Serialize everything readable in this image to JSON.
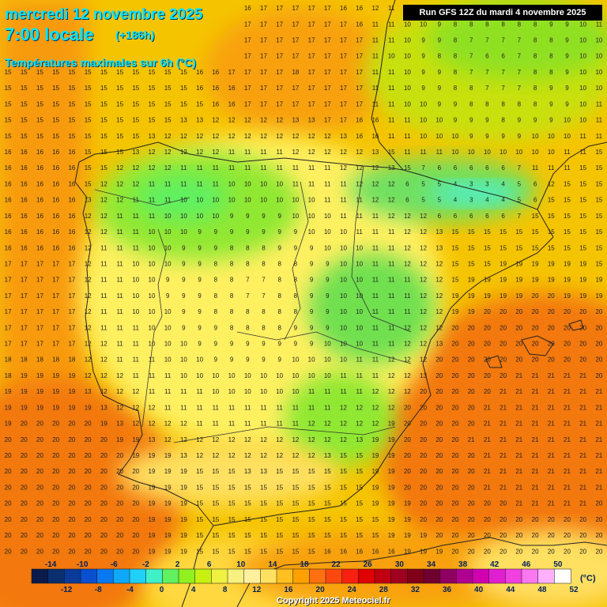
{
  "header": {
    "date": "mercredi 12 novembre 2025",
    "local_time": "7:00 locale",
    "lead_time": "(+186h)",
    "variable": "Températures maximales sur 6h (°C)"
  },
  "run_info": "Run GFS 12Z du mardi 4 novembre 2025",
  "copyright": "Copyright 2025 Meteociel.fr",
  "legend": {
    "unit": "(°C)",
    "labels_top": [
      "-14",
      "-10",
      "-6",
      "-2",
      "2",
      "6",
      "10",
      "14",
      "18",
      "22",
      "26",
      "30",
      "34",
      "38",
      "42",
      "46",
      "50"
    ],
    "labels_bottom": [
      "-12",
      "-8",
      "-4",
      "0",
      "4",
      "8",
      "12",
      "16",
      "20",
      "24",
      "28",
      "32",
      "36",
      "40",
      "44",
      "48",
      "52"
    ],
    "colors": [
      "#0a1a4a",
      "#0b2e6e",
      "#0a3a9a",
      "#0a4fd0",
      "#0a78f0",
      "#10a8f8",
      "#20d0f8",
      "#40f0c8",
      "#60f060",
      "#90f020",
      "#c8f010",
      "#f0f040",
      "#f8f080",
      "#fff0a0",
      "#ffe060",
      "#ffc020",
      "#ffa000",
      "#ff7010",
      "#ff4810",
      "#f82010",
      "#e00000",
      "#c00010",
      "#a00020",
      "#800018",
      "#700030",
      "#900060",
      "#b00090",
      "#d000b0",
      "#e020d0",
      "#f040e0",
      "#f878f0",
      "#ffb0ff",
      "#ffffff"
    ]
  },
  "map_meta": {
    "model": "GFS",
    "grid_cols": 38,
    "grid_rows": 38,
    "region": "Iberian Peninsula"
  }
}
